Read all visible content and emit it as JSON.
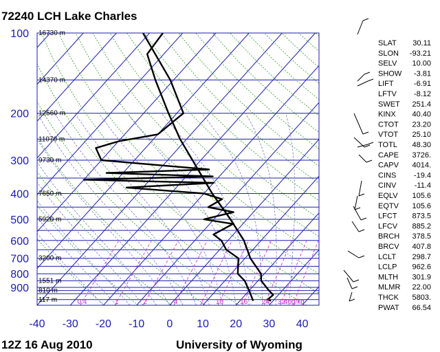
{
  "header": {
    "title": "72240 LCH Lake Charles"
  },
  "footer": {
    "time": "12Z 16 Aug 2010",
    "source": "University of Wyoming"
  },
  "chart_data": {
    "type": "skew-t",
    "title": "72240 LCH Lake Charles",
    "pressure_ticks": [
      100,
      200,
      300,
      400,
      500,
      600,
      700,
      800,
      900
    ],
    "temperature_ticks": [
      -40,
      -30,
      -20,
      -10,
      0,
      10,
      20,
      30,
      40
    ],
    "pressure_range": [
      100,
      1050
    ],
    "temperature_range": [
      -40,
      45
    ],
    "height_labels": [
      {
        "p": 100,
        "label": "16730 m"
      },
      {
        "p": 150,
        "label": "14370 m"
      },
      {
        "p": 200,
        "label": "12560 m"
      },
      {
        "p": 250,
        "label": "11070 m"
      },
      {
        "p": 300,
        "label": "9730 m"
      },
      {
        "p": 400,
        "label": "7650 m"
      },
      {
        "p": 500,
        "label": "5920 m"
      },
      {
        "p": 700,
        "label": "3200 m"
      },
      {
        "p": 850,
        "label": "1551 m"
      },
      {
        "p": 925,
        "label": "810 m"
      },
      {
        "p": 1000,
        "label": "117 m"
      }
    ],
    "mixing_ratio_labels": [
      "0.4",
      "1",
      "2",
      "4",
      "7",
      "10",
      "16",
      "24",
      "32",
      "40g/kg"
    ],
    "temperature_profile": [
      {
        "p": 1011,
        "t": 29.4
      },
      {
        "p": 1000,
        "t": 28.0
      },
      {
        "p": 960,
        "t": 28.4
      },
      {
        "p": 925,
        "t": 26.0
      },
      {
        "p": 850,
        "t": 21.0
      },
      {
        "p": 800,
        "t": 19.0
      },
      {
        "p": 700,
        "t": 11.6
      },
      {
        "p": 600,
        "t": 4.8
      },
      {
        "p": 500,
        "t": -5.0
      },
      {
        "p": 400,
        "t": -17.5
      },
      {
        "p": 300,
        "t": -32.5
      },
      {
        "p": 250,
        "t": -42.0
      },
      {
        "p": 200,
        "t": -52.5
      },
      {
        "p": 150,
        "t": -65.5
      },
      {
        "p": 120,
        "t": -75.0
      },
      {
        "p": 100,
        "t": -76.0
      }
    ],
    "dewpoint_profile": [
      {
        "p": 1011,
        "t": 24.0
      },
      {
        "p": 1000,
        "t": 23.5
      },
      {
        "p": 925,
        "t": 20.0
      },
      {
        "p": 850,
        "t": 16.0
      },
      {
        "p": 800,
        "t": 12.0
      },
      {
        "p": 700,
        "t": 8.0
      },
      {
        "p": 650,
        "t": 2.0
      },
      {
        "p": 600,
        "t": -2.0
      },
      {
        "p": 570,
        "t": -6.0
      },
      {
        "p": 520,
        "t": -3.0
      },
      {
        "p": 500,
        "t": -13.0
      },
      {
        "p": 470,
        "t": -6.0
      },
      {
        "p": 450,
        "t": -15.0
      },
      {
        "p": 420,
        "t": -13.0
      },
      {
        "p": 400,
        "t": -20.0
      },
      {
        "p": 380,
        "t": -45.0
      },
      {
        "p": 365,
        "t": -20.0
      },
      {
        "p": 355,
        "t": -60.0
      },
      {
        "p": 345,
        "t": -22.0
      },
      {
        "p": 335,
        "t": -55.0
      },
      {
        "p": 325,
        "t": -25.0
      },
      {
        "p": 300,
        "t": -60.0
      },
      {
        "p": 270,
        "t": -65.0
      },
      {
        "p": 255,
        "t": -60.0
      },
      {
        "p": 240,
        "t": -50.0
      },
      {
        "p": 200,
        "t": -48.0
      },
      {
        "p": 150,
        "t": -61.0
      },
      {
        "p": 100,
        "t": -82.0
      }
    ]
  },
  "indices": [
    {
      "name": "SLAT",
      "value": "30.11"
    },
    {
      "name": "SLON",
      "value": "-93.21"
    },
    {
      "name": "SELV",
      "value": "10.00"
    },
    {
      "name": "SHOW",
      "value": "-3.81"
    },
    {
      "name": "LIFT",
      "value": "-6.91"
    },
    {
      "name": "LFTV",
      "value": "-8.12"
    },
    {
      "name": "SWET",
      "value": "251.4"
    },
    {
      "name": "KINX",
      "value": "40.40"
    },
    {
      "name": "CTOT",
      "value": "23.20"
    },
    {
      "name": "VTOT",
      "value": "25.10"
    },
    {
      "name": "TOTL",
      "value": "48.30"
    },
    {
      "name": "CAPE",
      "value": "3726."
    },
    {
      "name": "CAPV",
      "value": "4014."
    },
    {
      "name": "CINS",
      "value": "-19.4"
    },
    {
      "name": "CINV",
      "value": "-11.4"
    },
    {
      "name": "EQLV",
      "value": "105.6"
    },
    {
      "name": "EQTV",
      "value": "105.6"
    },
    {
      "name": "LFCT",
      "value": "873.5"
    },
    {
      "name": "LFCV",
      "value": "885.2"
    },
    {
      "name": "BRCH",
      "value": "378.5"
    },
    {
      "name": "BRCV",
      "value": "407.8"
    },
    {
      "name": "LCLT",
      "value": "298.7"
    },
    {
      "name": "LCLP",
      "value": "962.6"
    },
    {
      "name": "MLTH",
      "value": "301.9"
    },
    {
      "name": "MLMR",
      "value": "22.00"
    },
    {
      "name": "THCK",
      "value": "5803."
    },
    {
      "name": "PWAT",
      "value": "66.54"
    }
  ],
  "colors": {
    "isobar": "#1b1bb0",
    "isotherm": "#1b1bb0",
    "dry_adiabat": "#2a9a2a",
    "moist_adiabat": "#7777cc",
    "mixing_ratio": "#cc22cc",
    "profile": "#000000"
  }
}
